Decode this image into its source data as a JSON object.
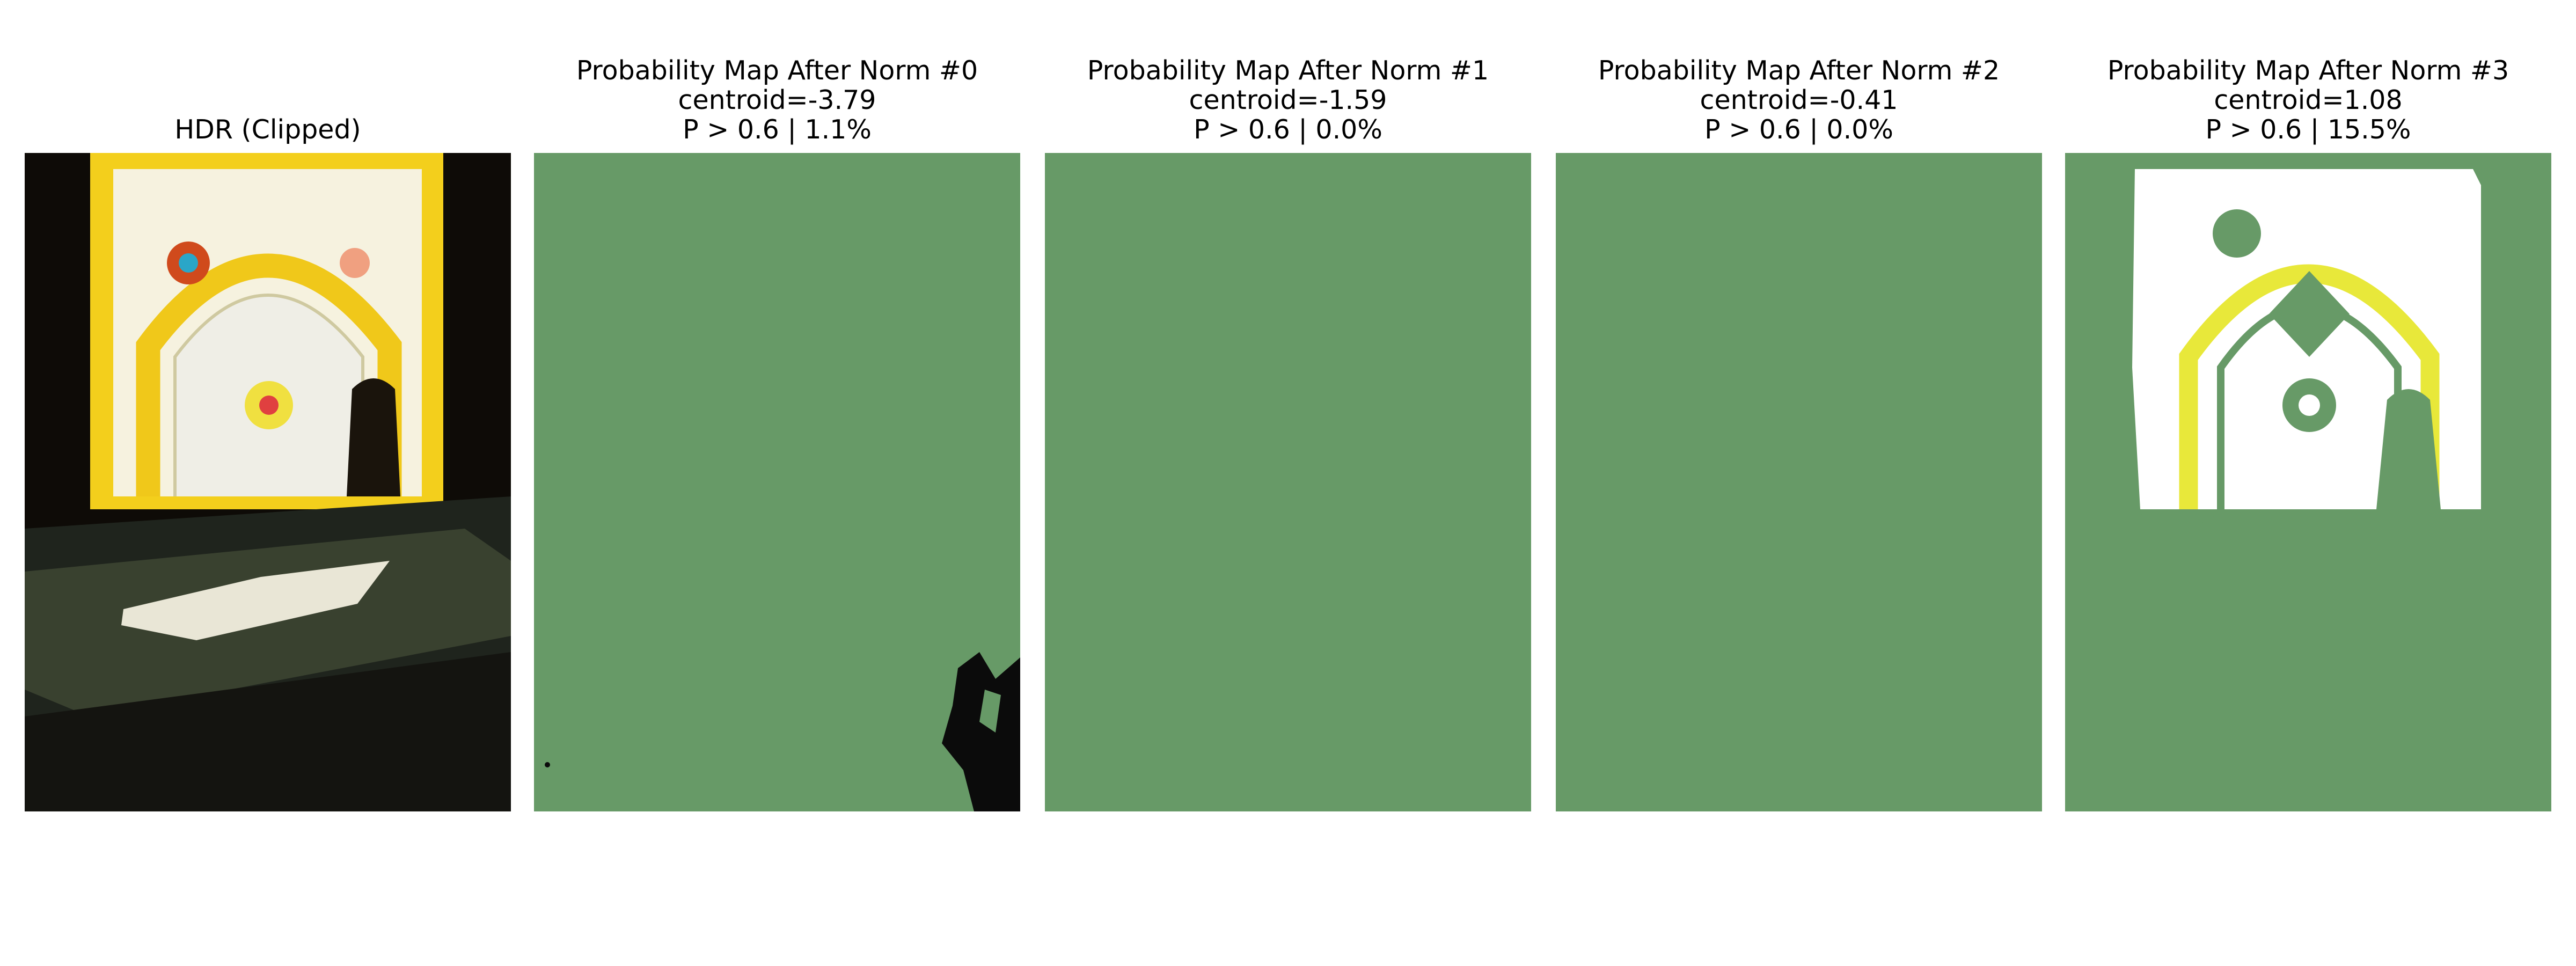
{
  "panels": [
    {
      "title": "HDR (Clipped)"
    },
    {
      "title": "Probability Map After Norm #0",
      "centroid": "centroid=-3.79",
      "stat": "P > 0.6 | 1.1%"
    },
    {
      "title": "Probability Map After Norm #1",
      "centroid": "centroid=-1.59",
      "stat": "P > 0.6 | 0.0%"
    },
    {
      "title": "Probability Map After Norm #2",
      "centroid": "centroid=-0.41",
      "stat": "P > 0.6 | 0.0%"
    },
    {
      "title": "Probability Map After Norm #3",
      "centroid": "centroid=1.08",
      "stat": "P > 0.6 | 15.5%"
    }
  ]
}
